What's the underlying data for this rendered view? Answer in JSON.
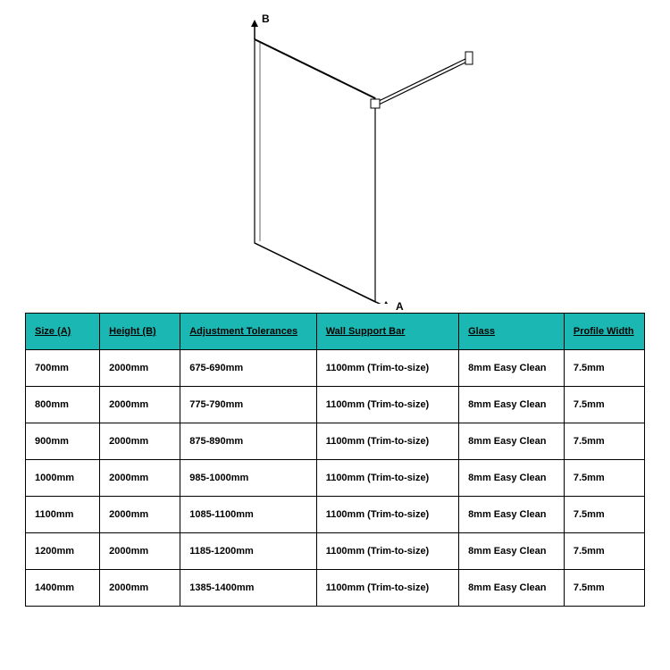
{
  "diagram": {
    "label_a": "A",
    "label_b": "B",
    "panel_fill": "#ffffff",
    "panel_stroke": "#000000",
    "bar_stroke": "#000000"
  },
  "table": {
    "header_bg": "#1bb8b3",
    "columns": [
      "Size (A)",
      "Height (B)",
      "Adjustment Tolerances",
      "Wall Support Bar",
      "Glass",
      "Profile Width"
    ],
    "rows": [
      [
        "700mm",
        "2000mm",
        "675-690mm",
        "1100mm (Trim-to-size)",
        "8mm Easy Clean",
        "7.5mm"
      ],
      [
        "800mm",
        "2000mm",
        "775-790mm",
        "1100mm (Trim-to-size)",
        "8mm Easy Clean",
        "7.5mm"
      ],
      [
        "900mm",
        "2000mm",
        "875-890mm",
        "1100mm (Trim-to-size)",
        "8mm Easy Clean",
        "7.5mm"
      ],
      [
        "1000mm",
        "2000mm",
        "985-1000mm",
        "1100mm (Trim-to-size)",
        "8mm Easy Clean",
        "7.5mm"
      ],
      [
        "1100mm",
        "2000mm",
        "1085-1100mm",
        "1100mm (Trim-to-size)",
        "8mm Easy Clean",
        "7.5mm"
      ],
      [
        "1200mm",
        "2000mm",
        "1185-1200mm",
        "1100mm (Trim-to-size)",
        "8mm Easy Clean",
        "7.5mm"
      ],
      [
        "1400mm",
        "2000mm",
        "1385-1400mm",
        "1100mm (Trim-to-size)",
        "8mm Easy Clean",
        "7.5mm"
      ]
    ]
  }
}
